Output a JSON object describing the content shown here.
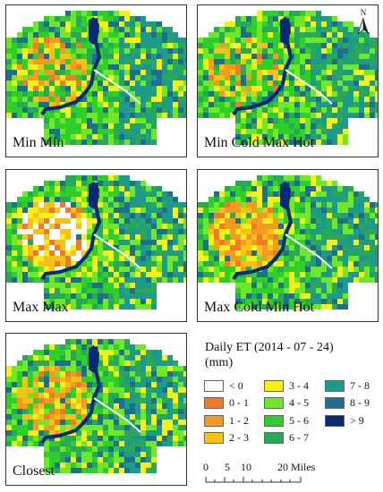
{
  "panels": [
    {
      "label": "Min Min",
      "dry": 0.55
    },
    {
      "label": "Min Cold Max Hot",
      "dry": 0.4
    },
    {
      "label": "Max Max",
      "dry": 0.95
    },
    {
      "label": "Max Cold Min Hot",
      "dry": 0.85
    },
    {
      "label": "Closest",
      "dry": 0.65
    }
  ],
  "north": "N",
  "legend": {
    "title_line1": "Daily ET (2014 - 07 - 24)",
    "title_line2": "(mm)",
    "classes": [
      {
        "label": "< 0",
        "color": "#ffffff"
      },
      {
        "label": "0 - 1",
        "color": "#f07a2a"
      },
      {
        "label": "1 - 2",
        "color": "#f59a20"
      },
      {
        "label": "2 - 3",
        "color": "#f5c21a"
      },
      {
        "label": "3 - 4",
        "color": "#f5f01a"
      },
      {
        "label": "4 - 5",
        "color": "#6fe82a"
      },
      {
        "label": "5 - 6",
        "color": "#2fcf2a"
      },
      {
        "label": "6 - 7",
        "color": "#2aa85a"
      },
      {
        "label": "7 - 8",
        "color": "#1e9a8c"
      },
      {
        "label": "8 - 9",
        "color": "#1e6e8c"
      },
      {
        "label": "> 9",
        "color": "#0a2a78"
      }
    ]
  },
  "scale": {
    "ticks": [
      "0",
      "5",
      "10",
      "20 Miles"
    ]
  }
}
